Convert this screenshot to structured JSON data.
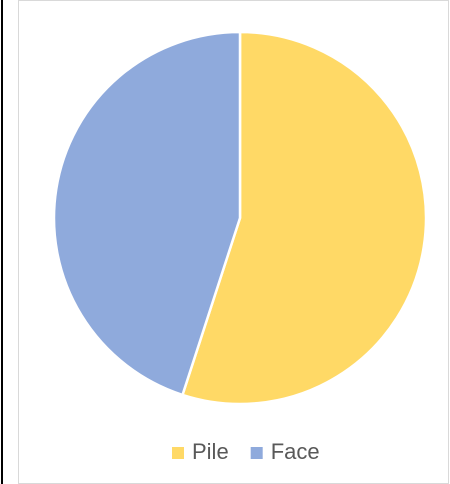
{
  "chart_data": {
    "type": "pie",
    "categories": [
      "Pile",
      "Face"
    ],
    "values": [
      55,
      45
    ],
    "colors": [
      "#FFD966",
      "#8FAADC"
    ],
    "legend": "bottom"
  }
}
